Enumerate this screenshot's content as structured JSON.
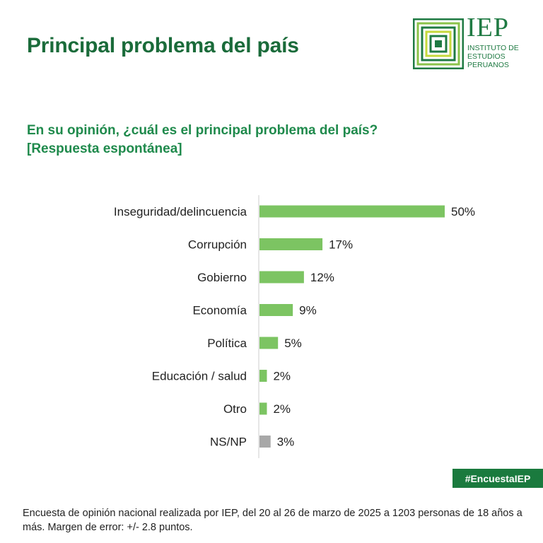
{
  "title": "Principal problema del país",
  "logo": {
    "name": "IEP",
    "lines": [
      "INSTITUTO DE",
      "ESTUDIOS",
      "PERUANOS"
    ],
    "colors": [
      "#1f7a43",
      "#8bc34a",
      "#c6d93b"
    ]
  },
  "question": {
    "line1": "En su opinión, ¿cuál es el principal problema del país?",
    "line2": "[Respuesta espontánea]"
  },
  "chart_data": {
    "type": "bar",
    "orientation": "horizontal",
    "categories": [
      "Inseguridad/delincuencia",
      "Corrupción",
      "Gobierno",
      "Economía",
      "Política",
      "Educación / salud",
      "Otro",
      "NS/NP"
    ],
    "values": [
      50,
      17,
      12,
      9,
      5,
      2,
      2,
      3
    ],
    "value_labels": [
      "50%",
      "17%",
      "12%",
      "9%",
      "5%",
      "2%",
      "2%",
      "3%"
    ],
    "bar_colors": [
      "#7cc462",
      "#7cc462",
      "#7cc462",
      "#7cc462",
      "#7cc462",
      "#7cc462",
      "#7cc462",
      "#a8a8a8"
    ],
    "unit": "%",
    "xlim": [
      0,
      50
    ],
    "grid": false,
    "legend": "none"
  },
  "hashtag": "#EncuestaIEP",
  "footnote": "Encuesta de opinión nacional realizada por IEP, del 20 al 26 de marzo de 2025 a 1203 personas de 18 años a más. Margen de error: +/- 2.8 puntos."
}
